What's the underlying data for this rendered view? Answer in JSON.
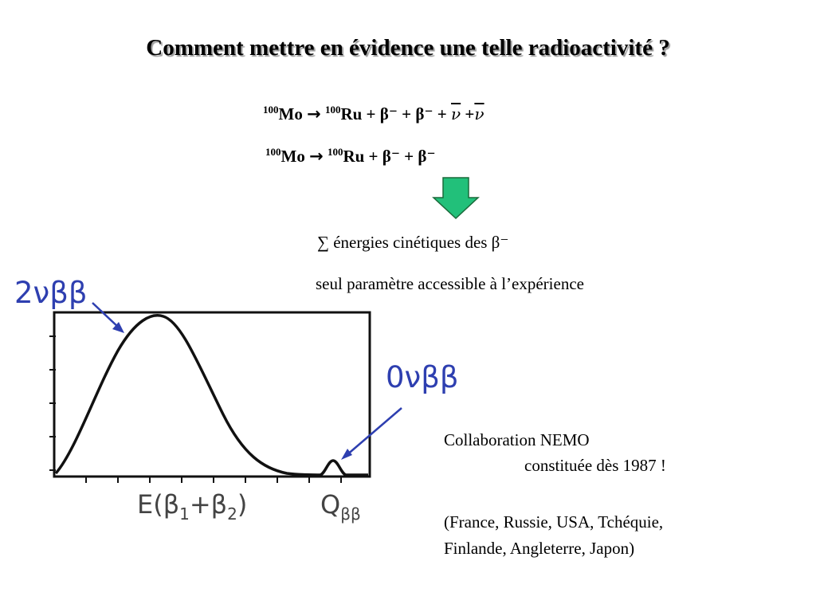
{
  "slide": {
    "title": "Comment mettre en évidence une telle radioactivité ?"
  },
  "equations": {
    "eq1": {
      "a_mass": "100",
      "a_sym": "Mo",
      "arrow": "→",
      "b_mass": "100",
      "b_sym": "Ru",
      "rest": " + β⁻ + β⁻ + ",
      "nubar1": "ν",
      "plus": " +",
      "nubar2": "ν"
    },
    "eq2": {
      "a_mass": "100",
      "a_sym": "Mo",
      "arrow": "→",
      "b_mass": "100",
      "b_sym": "Ru",
      "rest": " + β⁻ + β⁻"
    }
  },
  "description": {
    "line1": "∑ énergies cinétiques des β⁻",
    "line2": "seul paramètre accessible à l’expérience"
  },
  "plot": {
    "label_2nu": "2νββ",
    "label_0nu": "0νββ",
    "xlabel_main": "E(β",
    "xlabel_sub1": "1",
    "xlabel_plus": "+β",
    "xlabel_sub2": "2",
    "xlabel_close": ")",
    "qlabel": "Q",
    "qlabel_sub": "ββ",
    "colors": {
      "arrow": "#2e3fb0",
      "curve": "#111111",
      "down_arrow_fill": "#22c07a",
      "down_arrow_stroke": "#1a6a3a"
    }
  },
  "collaboration": {
    "line1": "Collaboration NEMO",
    "line2": "constituée dès 1987 !",
    "line3": "(France, Russie, USA, Tchéquie,",
    "line4": "Finlande, Angleterre, Japon)"
  }
}
